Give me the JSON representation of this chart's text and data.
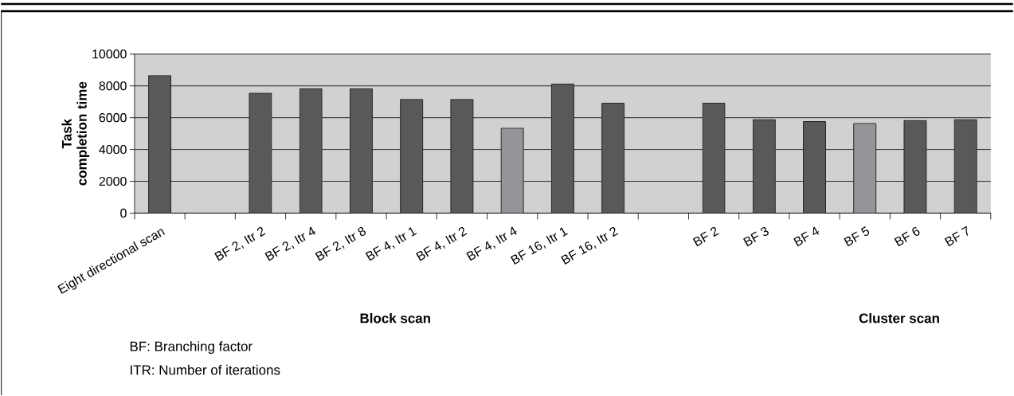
{
  "chart_data": {
    "type": "bar",
    "ylabel": "Task completion time",
    "categories": [
      "Eight directional scan",
      null,
      "BF 2, Itr 2",
      "BF 2, Itr 4",
      "BF 2, Itr 8",
      "BF 4, Itr 1",
      "BF 4, Itr 2",
      "BF 4, Itr 4",
      "BF 16, Itr 1",
      "BF 16, Itr 2",
      null,
      "BF 2",
      "BF 3",
      "BF 4",
      "BF 5",
      "BF 6",
      "BF 7"
    ],
    "values": [
      8650,
      null,
      7540,
      7820,
      7820,
      7150,
      7150,
      5340,
      8110,
      6910,
      null,
      6910,
      5880,
      5760,
      5640,
      5820,
      5880
    ],
    "colors": [
      "#58595b",
      null,
      "#58595b",
      "#58595b",
      "#58595b",
      "#58595b",
      "#58595b",
      "#939598",
      "#58595b",
      "#58595b",
      null,
      "#58595b",
      "#58595b",
      "#58595b",
      "#939598",
      "#58595b",
      "#58595b"
    ],
    "ylim": [
      0,
      10000
    ],
    "yticks": [
      0,
      2000,
      4000,
      6000,
      8000,
      10000
    ],
    "grid": "y",
    "annotations": [
      "Block scan",
      "Cluster scan",
      "BF: Branching factor",
      "ITR: Number of iterations"
    ]
  }
}
